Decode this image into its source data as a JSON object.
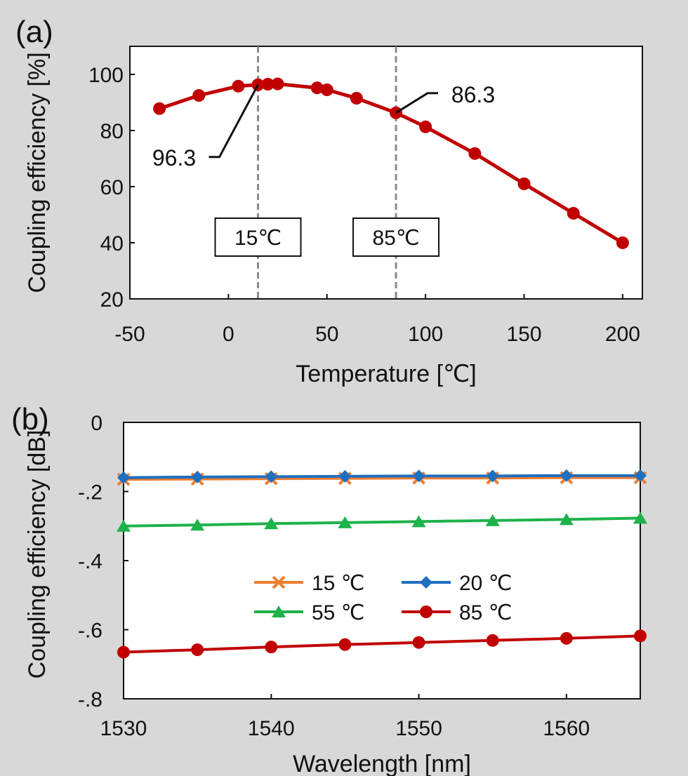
{
  "chart_data": [
    {
      "panel": "(a)",
      "type": "line",
      "xlabel": "Temperature [℃]",
      "ylabel": "Coupling efficiency [%]",
      "xlim": [
        -50,
        210
      ],
      "ylim": [
        20,
        110
      ],
      "xticks": [
        -50,
        0,
        50,
        100,
        150,
        200
      ],
      "yticks": [
        20,
        40,
        60,
        80,
        100
      ],
      "series": [
        {
          "name": "Coupling efficiency",
          "color": "#c00000",
          "marker": "circle",
          "x": [
            -35,
            -15,
            5,
            15,
            20,
            25,
            45,
            50,
            65,
            85,
            100,
            125,
            150,
            175,
            200
          ],
          "y": [
            87.8,
            92.5,
            95.8,
            96.3,
            96.5,
            96.6,
            95.2,
            94.5,
            91.5,
            86.3,
            81.3,
            71.8,
            61.0,
            50.5,
            40.0
          ]
        }
      ],
      "reference_lines": [
        {
          "x": 15,
          "label": "15℃"
        },
        {
          "x": 85,
          "label": "85℃"
        }
      ],
      "annotations": [
        {
          "text": "96.3",
          "x": 15,
          "y": 96.3
        },
        {
          "text": "86.3",
          "x": 85,
          "y": 86.3
        }
      ]
    },
    {
      "panel": "(b)",
      "type": "line",
      "xlabel": "Wavelength [nm]",
      "ylabel": "Coupling efficiency [dB]",
      "xlim": [
        1530,
        1565
      ],
      "ylim": [
        -0.8,
        0
      ],
      "xticks": [
        1530,
        1540,
        1550,
        1560
      ],
      "yticks": [
        0,
        -0.2,
        -0.4,
        -0.6,
        -0.8
      ],
      "x": [
        1530,
        1535,
        1540,
        1545,
        1550,
        1555,
        1560,
        1565
      ],
      "series": [
        {
          "name": "15 ℃",
          "color": "#ed7d31",
          "marker": "x",
          "values": [
            -0.165,
            -0.164,
            -0.163,
            -0.162,
            -0.161,
            -0.161,
            -0.16,
            -0.16
          ]
        },
        {
          "name": "20 ℃",
          "color": "#1f6fbf",
          "marker": "diamond",
          "values": [
            -0.16,
            -0.158,
            -0.157,
            -0.156,
            -0.155,
            -0.155,
            -0.154,
            -0.154
          ]
        },
        {
          "name": "55 ℃",
          "color": "#1eb24b",
          "marker": "triangle",
          "values": [
            -0.3,
            -0.297,
            -0.293,
            -0.29,
            -0.287,
            -0.284,
            -0.281,
            -0.277
          ]
        },
        {
          "name": "85 ℃",
          "color": "#c00000",
          "marker": "circle",
          "values": [
            -0.665,
            -0.658,
            -0.65,
            -0.643,
            -0.637,
            -0.631,
            -0.625,
            -0.618
          ]
        }
      ]
    }
  ]
}
